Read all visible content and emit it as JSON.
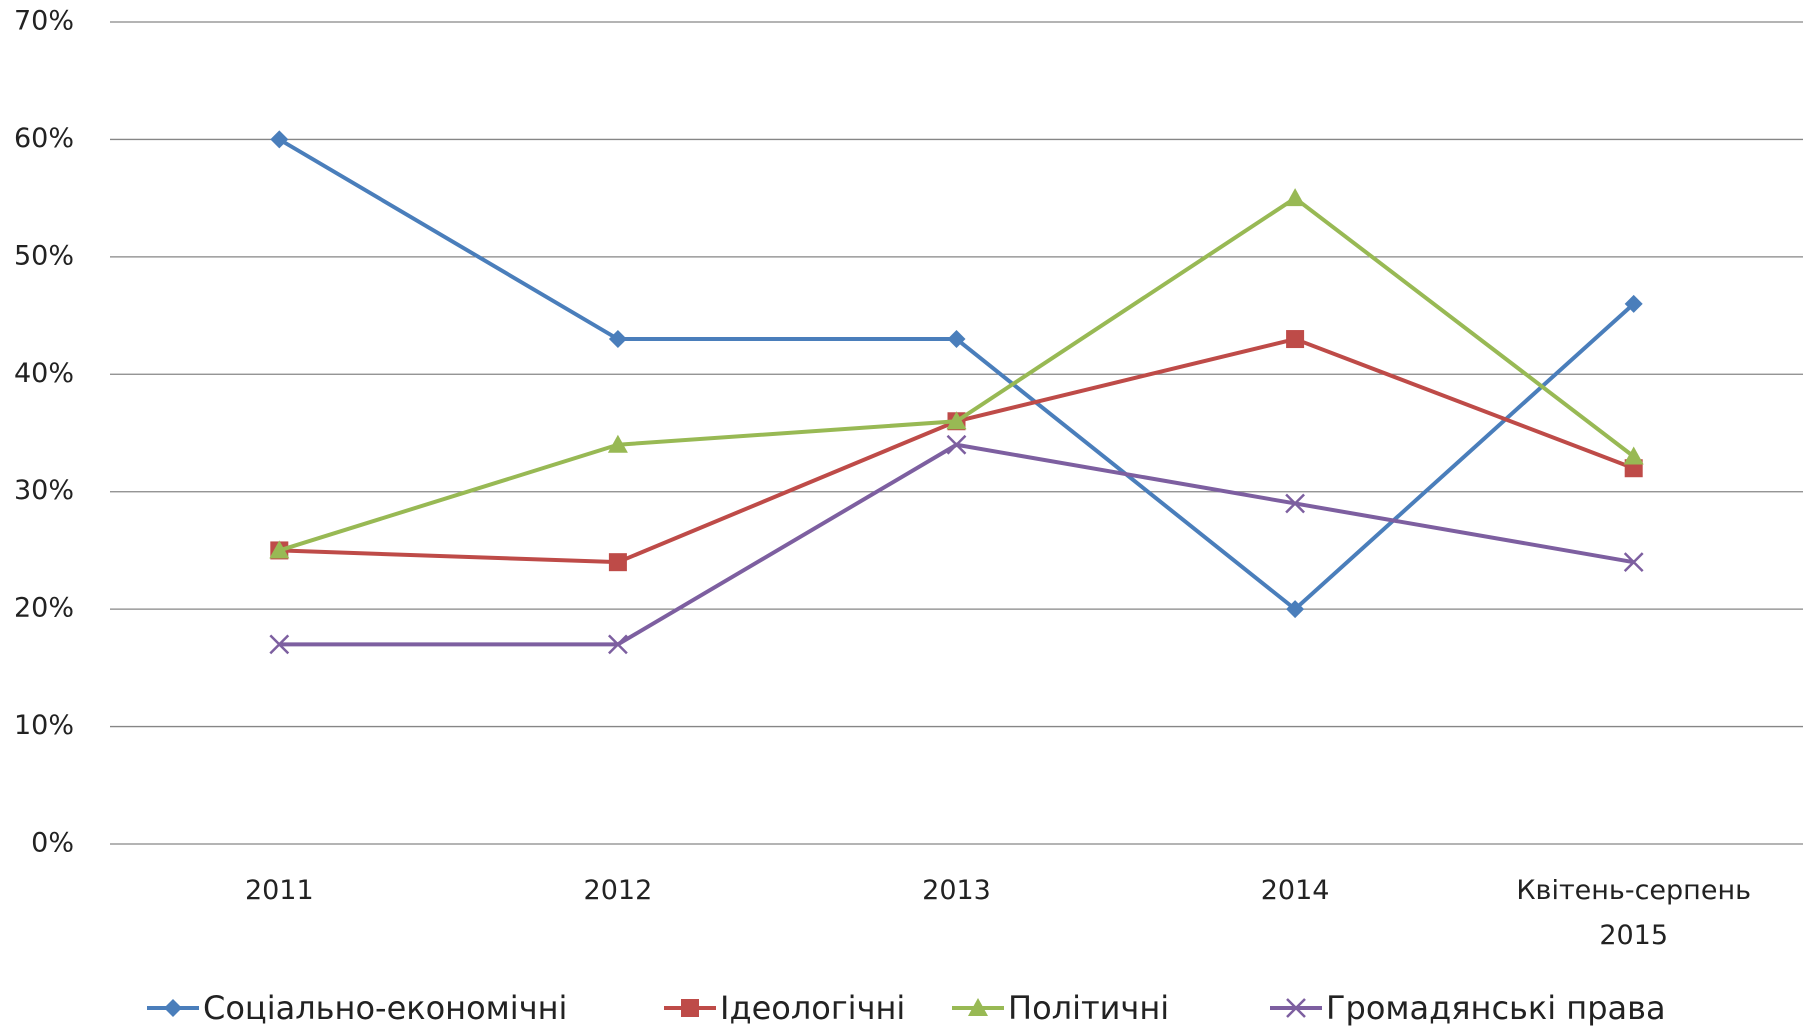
{
  "chart_data": {
    "type": "line",
    "categories": [
      "2011",
      "2012",
      "2013",
      "2014",
      "Квітень-серпень 2015"
    ],
    "series": [
      {
        "name": "Соціально-економічні",
        "color": "#4a7ebb",
        "marker": "diamond",
        "values": [
          60,
          43,
          43,
          20,
          46
        ]
      },
      {
        "name": "Ідеологічні",
        "color": "#be4b48",
        "marker": "square",
        "values": [
          25,
          24,
          36,
          43,
          32
        ]
      },
      {
        "name": "Політичні",
        "color": "#98b954",
        "marker": "triangle",
        "values": [
          25,
          34,
          36,
          55,
          33
        ]
      },
      {
        "name": "Громадянські права",
        "color": "#7d5fa0",
        "marker": "x",
        "values": [
          17,
          17,
          34,
          29,
          24
        ]
      }
    ],
    "ylim": [
      0,
      70
    ],
    "yticks": [
      {
        "value": 0,
        "label": "0%"
      },
      {
        "value": 10,
        "label": "10%"
      },
      {
        "value": 20,
        "label": "20%"
      },
      {
        "value": 30,
        "label": "30%"
      },
      {
        "value": 40,
        "label": "40%"
      },
      {
        "value": 50,
        "label": "50%"
      },
      {
        "value": 60,
        "label": "60%"
      },
      {
        "value": 70,
        "label": "70%"
      }
    ],
    "grid": true,
    "legend": "bottom"
  }
}
